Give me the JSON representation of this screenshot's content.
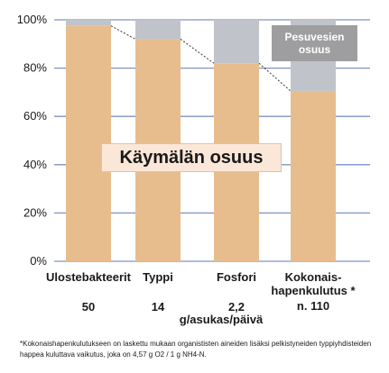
{
  "chart_data": {
    "type": "bar",
    "stacked": true,
    "categories": [
      "Ulostebakteerit",
      "Typpi",
      "Fosfori",
      "Kokonais-\nhapenkulutus *"
    ],
    "category_values": [
      "50",
      "14",
      "2,2",
      "n. 110"
    ],
    "unit_label": "g/asukas/päivä",
    "series": [
      {
        "name": "Käymälän osuus",
        "values": [
          97.5,
          92,
          82,
          70.5
        ],
        "color": "#e8bd8e"
      },
      {
        "name": "Pesuvesien osuus",
        "values": [
          2.5,
          8,
          18,
          29.5
        ],
        "color": "#c0c4ca"
      }
    ],
    "yticks": [
      "0%",
      "20%",
      "40%",
      "60%",
      "80%",
      "100%"
    ],
    "ylim": [
      0,
      100
    ],
    "grid": true,
    "connector_style": "dotted"
  },
  "annotations": {
    "toilet_share": "Käymälän osuus",
    "washwater_share": "Pesuvesien osuus"
  },
  "footnote": "*Kokonaishapenkulutukseen on laskettu mukaan organististen aineiden lisäksi pelkistyneiden typpiyhdisteiden happea kuluttava vaikutus, joka on 4,57 g O2 / 1 g NH4-N."
}
